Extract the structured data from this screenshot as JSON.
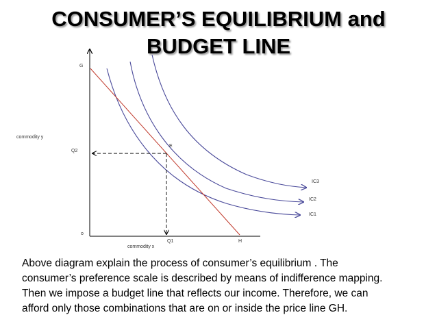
{
  "title": {
    "line1": "CONSUMER’S EQUILIBRIUM and",
    "line2": "BUDGET LINE"
  },
  "diagram": {
    "axis_y_label": "commodity y",
    "axis_x_label": "commodity x",
    "point_g": "G",
    "point_h": "H",
    "point_e": "E",
    "origin": "o",
    "q1": "Q1",
    "q2": "Q2",
    "ic_labels": [
      "IC3",
      "IC2",
      "IC1"
    ],
    "colors": {
      "indifference_curves": "#4a4a9a",
      "budget_line": "#c0392b",
      "axes": "#000000"
    }
  },
  "caption": {
    "line1": "Above diagram explain the process of consumer’s equilibrium . The",
    "line2": "consumer’s preference scale is described by means of indifference mapping.",
    "line3": "Then we impose a budget line that reflects our income. Therefore, we can",
    "line4": "afford only those combinations that are on or inside the price line GH."
  }
}
